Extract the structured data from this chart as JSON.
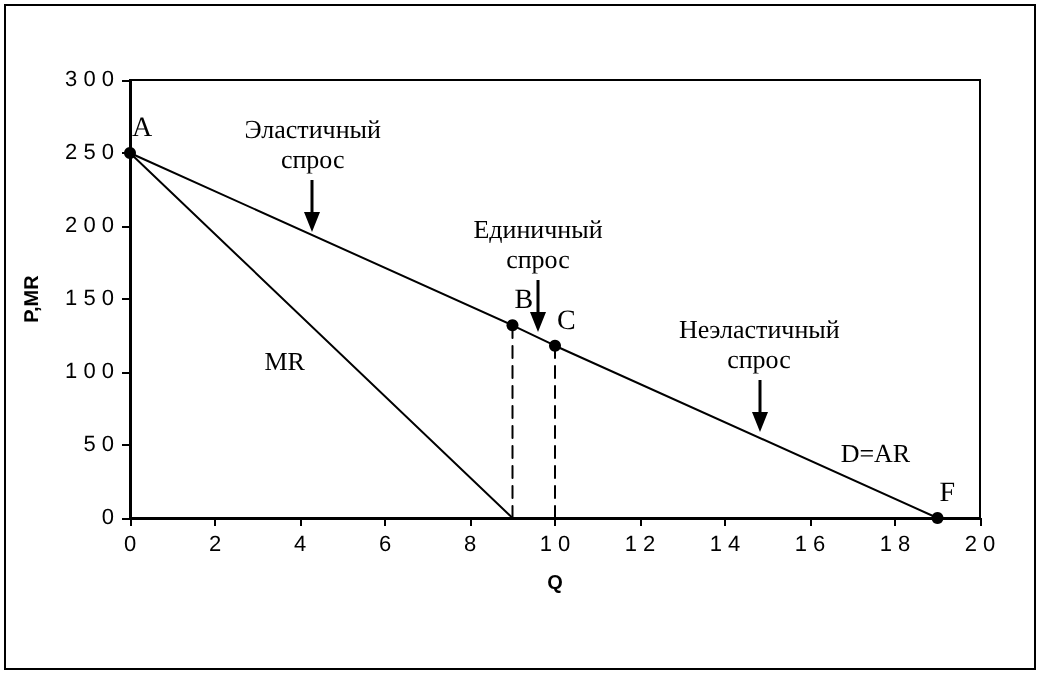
{
  "chart_data": {
    "type": "line",
    "xlabel": "Q",
    "ylabel": "P,MR",
    "xlim": [
      0,
      20
    ],
    "xticks": [
      0,
      2,
      4,
      6,
      8,
      10,
      12,
      14,
      16,
      18,
      20
    ],
    "ylim": [
      0,
      300
    ],
    "yticks": [
      0,
      50,
      100,
      150,
      200,
      250,
      300
    ],
    "grid": false,
    "legend": false,
    "series": [
      {
        "name": "D=AR",
        "color": "#000000",
        "x": [
          0,
          9,
          10,
          19
        ],
        "values": [
          250,
          132,
          118,
          0
        ],
        "marker": "circle",
        "value_labels": [
          "A",
          "B",
          "C",
          "F"
        ]
      },
      {
        "name": "MR",
        "color": "#000000",
        "x": [
          0,
          9
        ],
        "values": [
          250,
          0
        ],
        "marker": "none"
      },
      {
        "color": "#000000",
        "x": [
          9,
          9
        ],
        "values": [
          0,
          132
        ],
        "marker": "none",
        "line_style": "dashed"
      },
      {
        "color": "#000000",
        "x": [
          10,
          10
        ],
        "values": [
          0,
          118
        ],
        "marker": "none",
        "line_style": "dashed"
      }
    ],
    "annotations": [
      {
        "text": "Эластичный спрос",
        "x": 4.3,
        "y": 195
      },
      {
        "text": "Единичный спрос",
        "x": 9.6,
        "y": 126
      },
      {
        "text": "Неэластичный спрос",
        "x": 14.8,
        "y": 57
      }
    ]
  }
}
